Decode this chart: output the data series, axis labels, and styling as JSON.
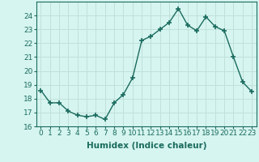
{
  "x": [
    0,
    1,
    2,
    3,
    4,
    5,
    6,
    7,
    8,
    9,
    10,
    11,
    12,
    13,
    14,
    15,
    16,
    17,
    18,
    19,
    20,
    21,
    22,
    23
  ],
  "y": [
    18.6,
    17.7,
    17.7,
    17.1,
    16.8,
    16.7,
    16.8,
    16.5,
    17.7,
    18.3,
    19.5,
    22.2,
    22.5,
    23.0,
    23.5,
    24.5,
    23.3,
    22.9,
    23.9,
    23.2,
    22.9,
    21.0,
    19.2,
    18.5
  ],
  "line_color": "#1a6b5e",
  "marker": "+",
  "marker_size": 4,
  "bg_color": "#d6f5f0",
  "grid_color": "#c0e0da",
  "title": "",
  "xlabel": "Humidex (Indice chaleur)",
  "ylabel": "",
  "xlim": [
    -0.5,
    23.5
  ],
  "ylim": [
    16,
    25
  ],
  "yticks": [
    16,
    17,
    18,
    19,
    20,
    21,
    22,
    23,
    24
  ],
  "xticks": [
    0,
    1,
    2,
    3,
    4,
    5,
    6,
    7,
    8,
    9,
    10,
    11,
    12,
    13,
    14,
    15,
    16,
    17,
    18,
    19,
    20,
    21,
    22,
    23
  ],
  "xlabel_fontsize": 7.5,
  "tick_fontsize": 6.5,
  "line_width": 1.0,
  "marker_color": "#1a6b5e",
  "spine_color": "#1a6b5e",
  "tick_color": "#1a6b5e"
}
